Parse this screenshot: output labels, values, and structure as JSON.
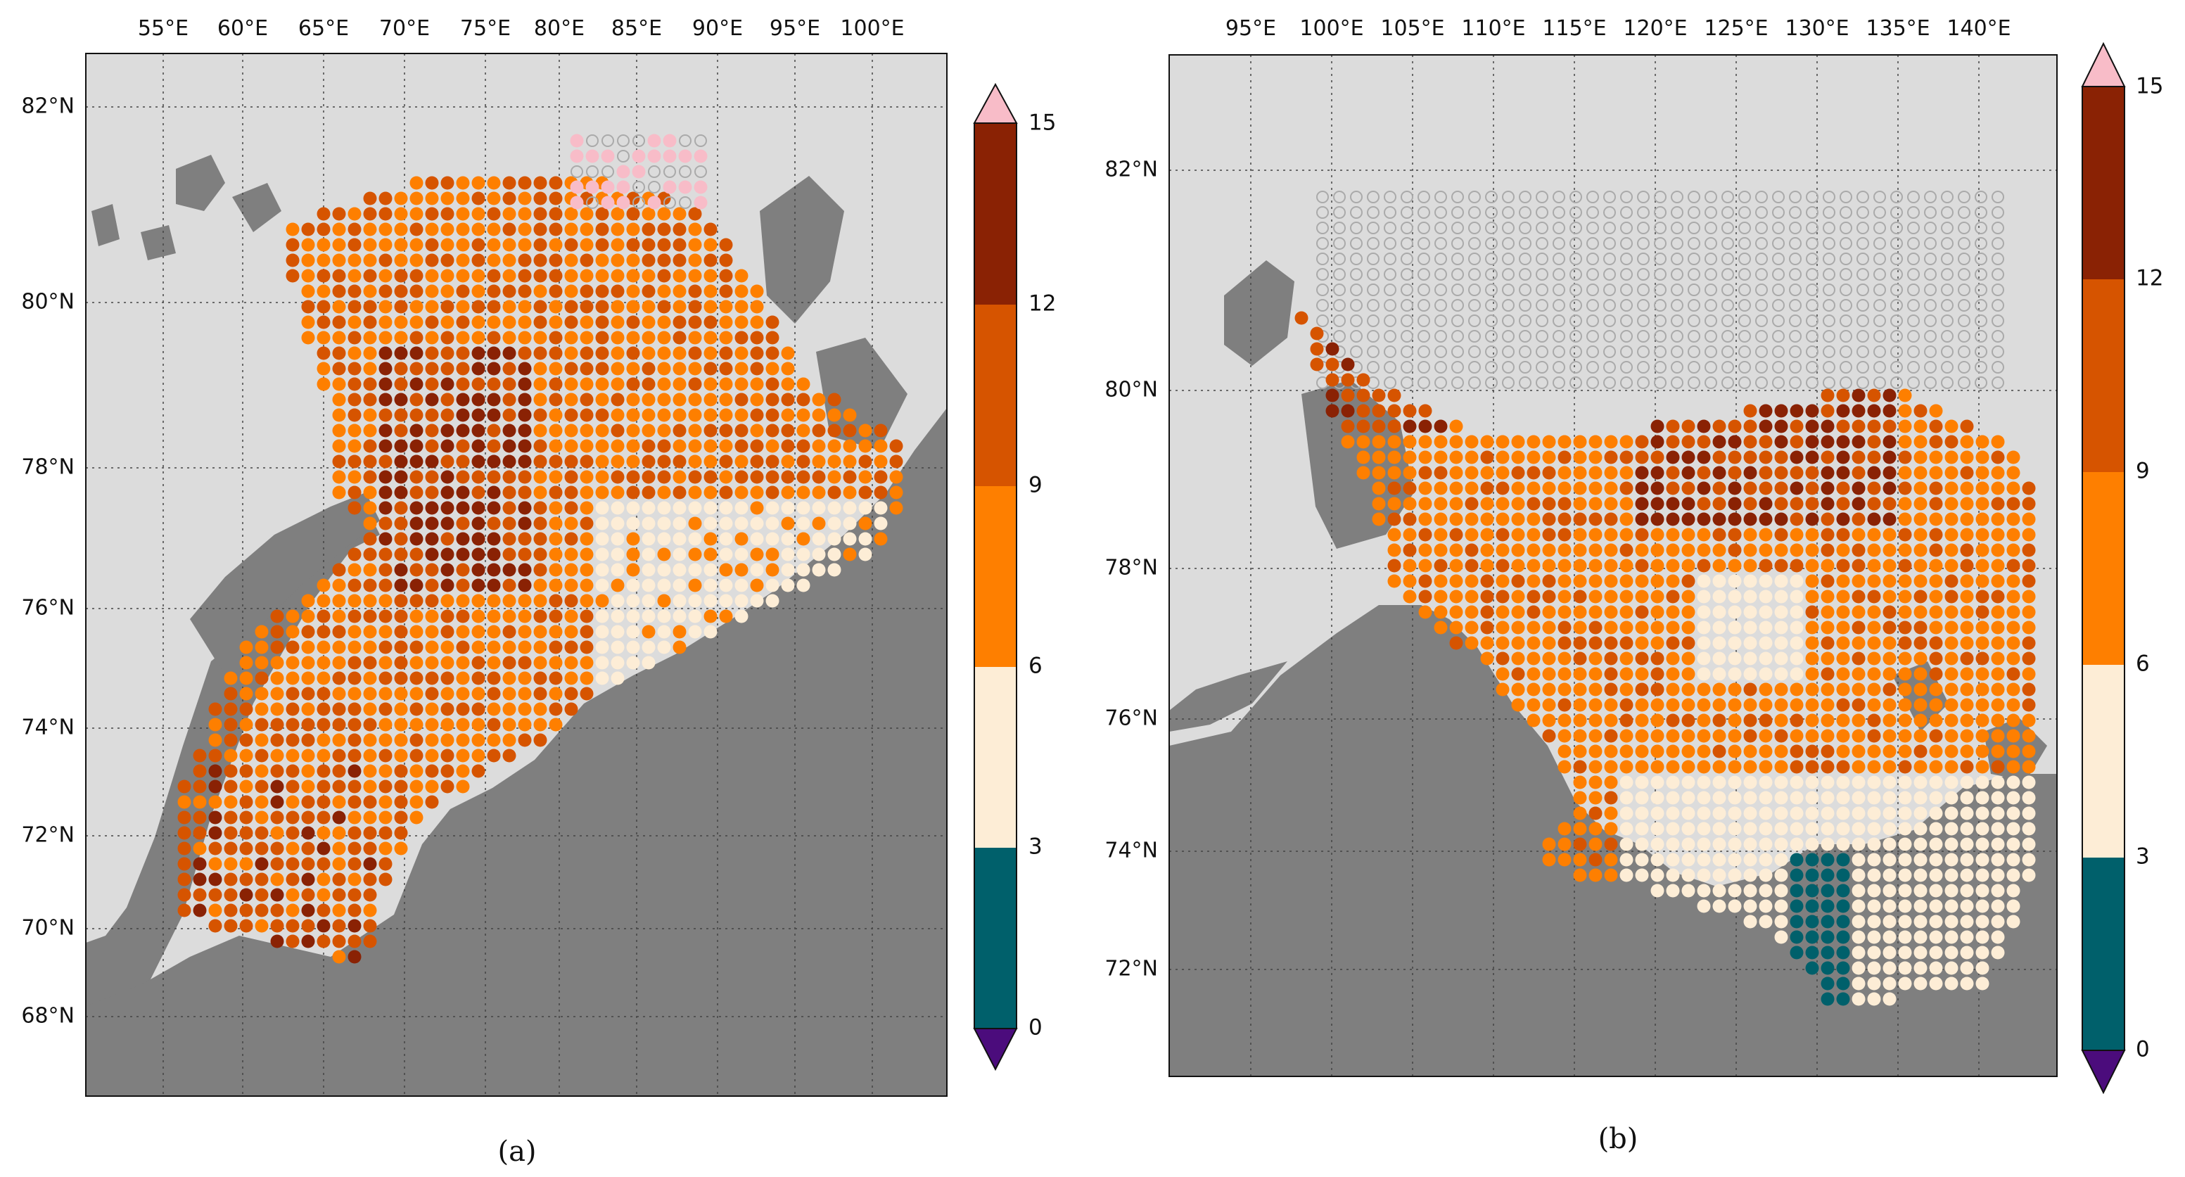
{
  "figure": {
    "panels": [
      {
        "caption": "(a)",
        "lon_labels": [
          "55°E",
          "60°E",
          "65°E",
          "70°E",
          "75°E",
          "80°E",
          "85°E",
          "90°E",
          "95°E",
          "100°E"
        ],
        "lat_labels": [
          "82°N",
          "80°N",
          "78°N",
          "76°N",
          "74°N",
          "72°N",
          "70°N",
          "68°N"
        ],
        "colorbar": {
          "ticks": [
            "0",
            "3",
            "6",
            "9",
            "12",
            "15"
          ],
          "bounds": [
            0,
            3,
            6,
            9,
            12,
            15
          ],
          "colors": [
            "#00606b",
            "#fdedd6",
            "#fe7f00",
            "#d65400",
            "#8a2204"
          ],
          "under_color": "#4b0c7c",
          "over_color": "#f8bcc8"
        },
        "land_color": "#7f7f7f",
        "sea_color": "#dcdcdc",
        "empty_marker_color": "#aaaaaa"
      },
      {
        "caption": "(b)",
        "lon_labels": [
          "95°E",
          "100°E",
          "105°E",
          "110°E",
          "115°E",
          "120°E",
          "125°E",
          "130°E",
          "135°E",
          "140°E"
        ],
        "lat_labels": [
          "82°N",
          "80°N",
          "78°N",
          "76°N",
          "74°N",
          "72°N"
        ],
        "colorbar": {
          "ticks": [
            "0",
            "3",
            "6",
            "9",
            "12",
            "15"
          ],
          "bounds": [
            0,
            3,
            6,
            9,
            12,
            15
          ],
          "colors": [
            "#00606b",
            "#fdedd6",
            "#fe7f00",
            "#d65400",
            "#8a2204"
          ],
          "under_color": "#4b0c7c",
          "over_color": "#f8bcc8"
        },
        "land_color": "#7f7f7f",
        "sea_color": "#dcdcdc",
        "empty_marker_color": "#aaaaaa"
      }
    ]
  }
}
